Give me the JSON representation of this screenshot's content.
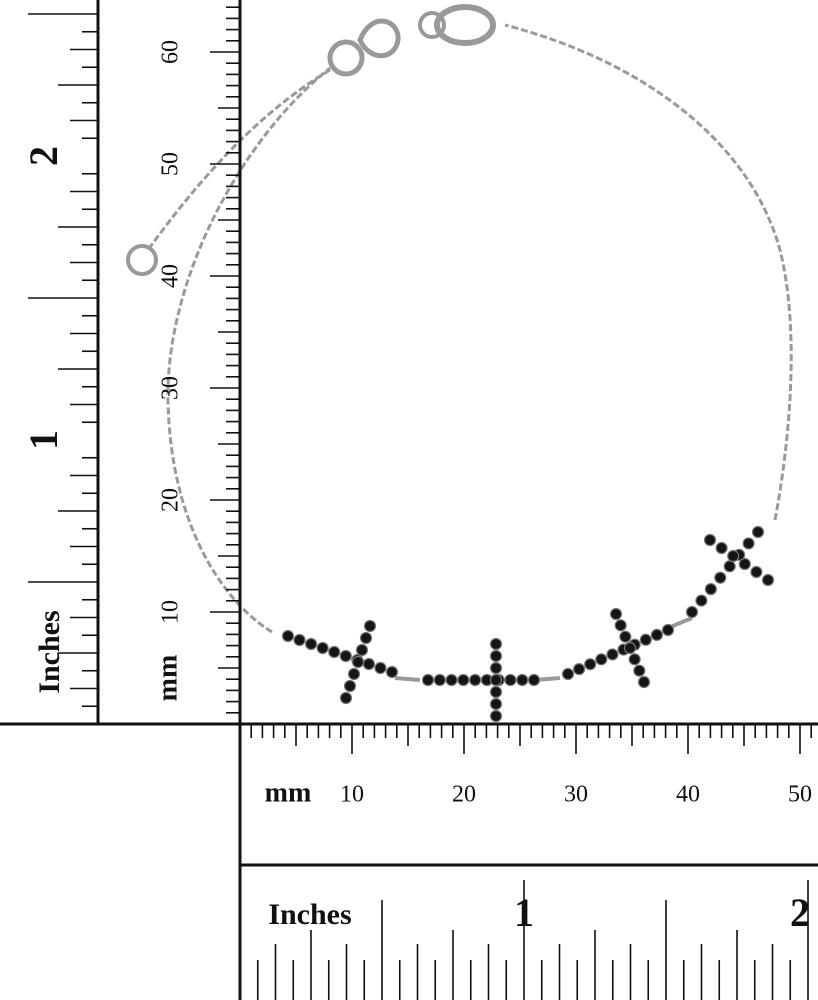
{
  "vertical_ruler": {
    "inches_label": "Inches",
    "inch_numbers": [
      1,
      2
    ],
    "mm_label": "mm",
    "mm_numbers": [
      10,
      20,
      30,
      40,
      50,
      60
    ]
  },
  "horizontal_ruler": {
    "mm_label": "mm",
    "mm_numbers": [
      10,
      20,
      30,
      40,
      50
    ],
    "inches_label": "Inches",
    "inch_numbers": [
      1,
      2
    ]
  }
}
